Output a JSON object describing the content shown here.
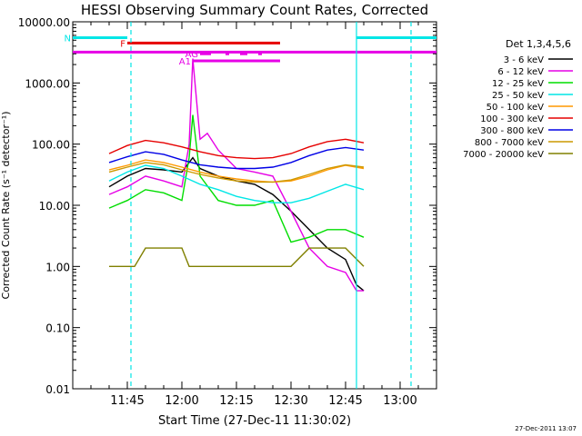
{
  "chart_data": {
    "type": "line",
    "title": "HESSI Observing Summary Count Rates, Corrected",
    "ylabel": "Corrected Count Rate (s⁻¹ detector⁻¹)",
    "xlabel": "Start Time (27-Dec-11 11:30:02)",
    "timestamp": "27-Dec-2011 13:07",
    "y_scale": "log",
    "ylim": [
      0.01,
      10000
    ],
    "xlim": [
      "11:30",
      "13:10"
    ],
    "x_ticks": [
      "11:45",
      "12:00",
      "12:15",
      "12:30",
      "12:45",
      "13:00"
    ],
    "y_ticks": [
      "10000.00",
      "1000.00",
      "100.00",
      "10.00",
      "1.00",
      "0.10",
      "0.01"
    ],
    "legend_title": "Det 1,3,4,5,6",
    "series": [
      {
        "name": "3 - 6 keV",
        "color": "#000000",
        "x": [
          "11:40",
          "11:45",
          "11:50",
          "11:55",
          "12:00",
          "12:03",
          "12:05",
          "12:10",
          "12:15",
          "12:20",
          "12:25",
          "12:30",
          "12:35",
          "12:40",
          "12:45",
          "12:48",
          "12:50"
        ],
        "values": [
          20,
          30,
          40,
          38,
          35,
          60,
          40,
          30,
          25,
          22,
          15,
          8,
          4,
          2,
          1.3,
          0.5,
          0.4
        ]
      },
      {
        "name": "6 - 12 keV",
        "color": "#e600e6",
        "x": [
          "11:40",
          "11:45",
          "11:50",
          "11:55",
          "12:00",
          "12:02",
          "12:03",
          "12:05",
          "12:07",
          "12:10",
          "12:15",
          "12:20",
          "12:25",
          "12:30",
          "12:35",
          "12:40",
          "12:45",
          "12:48",
          "12:50"
        ],
        "values": [
          15,
          20,
          30,
          25,
          20,
          100,
          2500,
          120,
          150,
          80,
          40,
          35,
          30,
          8,
          2,
          1,
          0.8,
          0.4,
          0.4
        ]
      },
      {
        "name": "12 - 25 keV",
        "color": "#00dd00",
        "x": [
          "11:40",
          "11:45",
          "11:50",
          "11:55",
          "12:00",
          "12:02",
          "12:03",
          "12:05",
          "12:10",
          "12:15",
          "12:20",
          "12:25",
          "12:30",
          "12:35",
          "12:40",
          "12:45",
          "12:50"
        ],
        "values": [
          9,
          12,
          18,
          16,
          12,
          60,
          300,
          30,
          12,
          10,
          10,
          12,
          2.5,
          3,
          4,
          4,
          3
        ]
      },
      {
        "name": "25 - 50 keV",
        "color": "#00e6e6",
        "x": [
          "11:40",
          "11:45",
          "11:50",
          "11:55",
          "12:00",
          "12:05",
          "12:10",
          "12:15",
          "12:20",
          "12:25",
          "12:30",
          "12:35",
          "12:40",
          "12:45",
          "12:50"
        ],
        "values": [
          25,
          35,
          45,
          40,
          30,
          22,
          18,
          14,
          12,
          11,
          11,
          13,
          17,
          22,
          18
        ]
      },
      {
        "name": "50 - 100 keV",
        "color": "#ff9900",
        "x": [
          "11:40",
          "11:45",
          "11:50",
          "11:55",
          "12:00",
          "12:05",
          "12:10",
          "12:15",
          "12:20",
          "12:25",
          "12:30",
          "12:35",
          "12:40",
          "12:45",
          "12:50"
        ],
        "values": [
          38,
          45,
          55,
          50,
          42,
          35,
          30,
          27,
          25,
          24,
          25,
          30,
          38,
          45,
          40
        ]
      },
      {
        "name": "100 - 300 keV",
        "color": "#e60000",
        "x": [
          "11:40",
          "11:45",
          "11:50",
          "11:55",
          "12:00",
          "12:05",
          "12:10",
          "12:15",
          "12:20",
          "12:25",
          "12:30",
          "12:35",
          "12:40",
          "12:45",
          "12:50"
        ],
        "values": [
          70,
          95,
          115,
          105,
          90,
          75,
          65,
          60,
          58,
          60,
          70,
          90,
          110,
          120,
          105
        ]
      },
      {
        "name": "300 - 800 keV",
        "color": "#0000e6",
        "x": [
          "11:40",
          "11:45",
          "11:50",
          "11:55",
          "12:00",
          "12:05",
          "12:10",
          "12:15",
          "12:20",
          "12:25",
          "12:30",
          "12:35",
          "12:40",
          "12:45",
          "12:50"
        ],
        "values": [
          50,
          62,
          75,
          68,
          55,
          46,
          42,
          40,
          40,
          42,
          50,
          65,
          80,
          88,
          80
        ]
      },
      {
        "name": "800 - 7000 keV",
        "color": "#cc9900",
        "x": [
          "11:40",
          "11:45",
          "11:50",
          "11:55",
          "12:00",
          "12:05",
          "12:10",
          "12:15",
          "12:20",
          "12:25",
          "12:30",
          "12:35",
          "12:40",
          "12:45",
          "12:50"
        ],
        "values": [
          35,
          42,
          50,
          46,
          38,
          32,
          28,
          25,
          24,
          24,
          26,
          32,
          40,
          46,
          42
        ]
      },
      {
        "name": "7000 - 20000 keV",
        "color": "#808000",
        "x": [
          "11:40",
          "11:47",
          "11:50",
          "11:55",
          "12:00",
          "12:02",
          "12:04",
          "12:30",
          "12:35",
          "12:40",
          "12:45",
          "12:50"
        ],
        "values": [
          1,
          1,
          2,
          2,
          2,
          1,
          1,
          1,
          2,
          2,
          2,
          1
        ]
      }
    ],
    "flags": [
      {
        "label": "N",
        "color": "#00e6e6",
        "segments": [
          [
            "11:30",
            "11:45"
          ],
          [
            "12:48",
            "13:10"
          ]
        ],
        "level": 5500
      },
      {
        "label": "F",
        "color": "#e60000",
        "segments": [
          [
            "11:45",
            "12:27"
          ]
        ],
        "level": 4500
      },
      {
        "label": "",
        "color": "#e600e6",
        "segments": [
          [
            "11:30",
            "13:10"
          ]
        ],
        "level": 3200
      },
      {
        "label": "AG",
        "color": "#e600e6",
        "segments": [
          [
            "12:05",
            "12:08"
          ],
          [
            "12:12",
            "12:13"
          ],
          [
            "12:16",
            "12:18"
          ],
          [
            "12:21",
            "12:22"
          ]
        ],
        "level": 3000
      },
      {
        "label": "A1",
        "color": "#e600e6",
        "segments": [
          [
            "12:03",
            "12:27"
          ]
        ],
        "level": 2300
      }
    ],
    "vlines": [
      {
        "x": "11:46",
        "color": "#00e6e6",
        "style": "dashed"
      },
      {
        "x": "12:48",
        "color": "#00e6e6",
        "style": "solid"
      },
      {
        "x": "13:03",
        "color": "#00e6e6",
        "style": "dashed"
      }
    ]
  }
}
